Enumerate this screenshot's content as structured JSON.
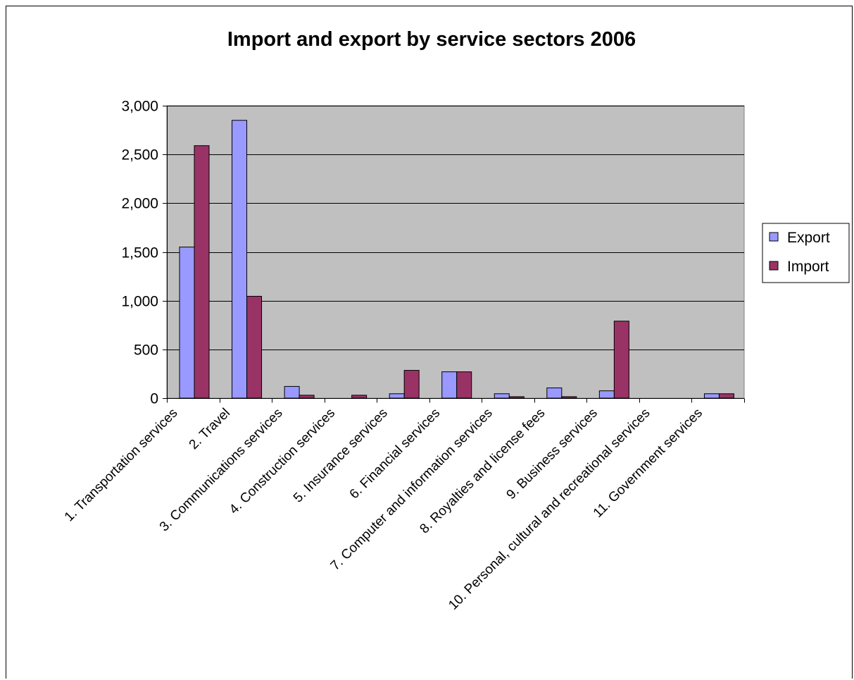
{
  "chart_data": {
    "type": "bar",
    "title": "Import and export by service sectors 2006",
    "xlabel": "",
    "ylabel": "",
    "ylim": [
      0,
      3000
    ],
    "yticks": [
      "0",
      "500",
      "1,000",
      "1,500",
      "2,000",
      "2,500",
      "3,000"
    ],
    "ytick_values": [
      0,
      500,
      1000,
      1500,
      2000,
      2500,
      3000
    ],
    "grid": true,
    "legend_position": "right",
    "categories": [
      "1.  Transportation services",
      "2.  Travel",
      "3.  Communications services",
      "4.  Construction services",
      "5.  Insurance services",
      "6.  Financial services",
      "7.  Computer and information services",
      "8.  Royalties and license fees",
      "9.  Business services",
      "10.  Personal, cultural and recreational services",
      "11.  Government services"
    ],
    "series": [
      {
        "name": "Export",
        "color": "#9999FF",
        "values": [
          1550,
          2850,
          120,
          0,
          45,
          270,
          45,
          105,
          75,
          0,
          45
        ]
      },
      {
        "name": "Import",
        "color": "#993366",
        "values": [
          2590,
          1045,
          30,
          30,
          285,
          270,
          15,
          15,
          790,
          0,
          45
        ]
      }
    ],
    "plot_background": "#C0C0C0"
  }
}
